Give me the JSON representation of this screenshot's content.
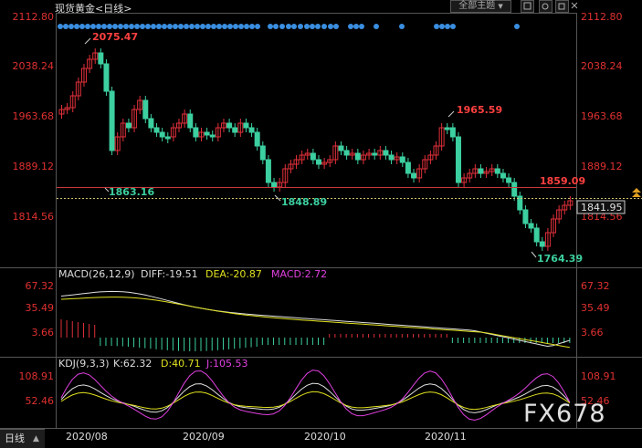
{
  "header": {
    "symbol": "现货黄金",
    "period": "<日线>",
    "main_chart_button": "全部主题",
    "main_chart_arrow": "▼"
  },
  "price_panel": {
    "axis_labels": [
      "2112.80",
      "2038.24",
      "1963.68",
      "1889.12",
      "1814.56"
    ],
    "annotations": {
      "high": "2075.47",
      "high2": "1965.59",
      "low1": "1863.16",
      "low2": "1848.89",
      "low3": "1764.39",
      "hline_value": "1859.09",
      "last_price": "1841.95"
    },
    "colors": {
      "up": "#e0303a",
      "down": "#3ccfa0",
      "hline": "#c8383a",
      "hline_label": "#ff4040",
      "last": "#e0e0e0"
    }
  },
  "macd_panel": {
    "title": "MACD(26,12,9)",
    "diff": "DIFF:-19.51",
    "dea": "DEA:-20.87",
    "macd": "MACD:2.72",
    "axis_labels": [
      "67.32",
      "35.49",
      "3.66"
    ]
  },
  "kdj_panel": {
    "title": "KDJ(9,3,3)",
    "k": "K:62.32",
    "d": "D:40.71",
    "j": "J:105.53",
    "axis_labels": [
      "108.91",
      "52.46"
    ]
  },
  "x_axis": {
    "labels": [
      "2020/08",
      "2020/09",
      "2020/10",
      "2020/11"
    ]
  },
  "footer": {
    "tab_label": "日线",
    "tab_arrow": "▲"
  },
  "watermark": "FX678"
}
